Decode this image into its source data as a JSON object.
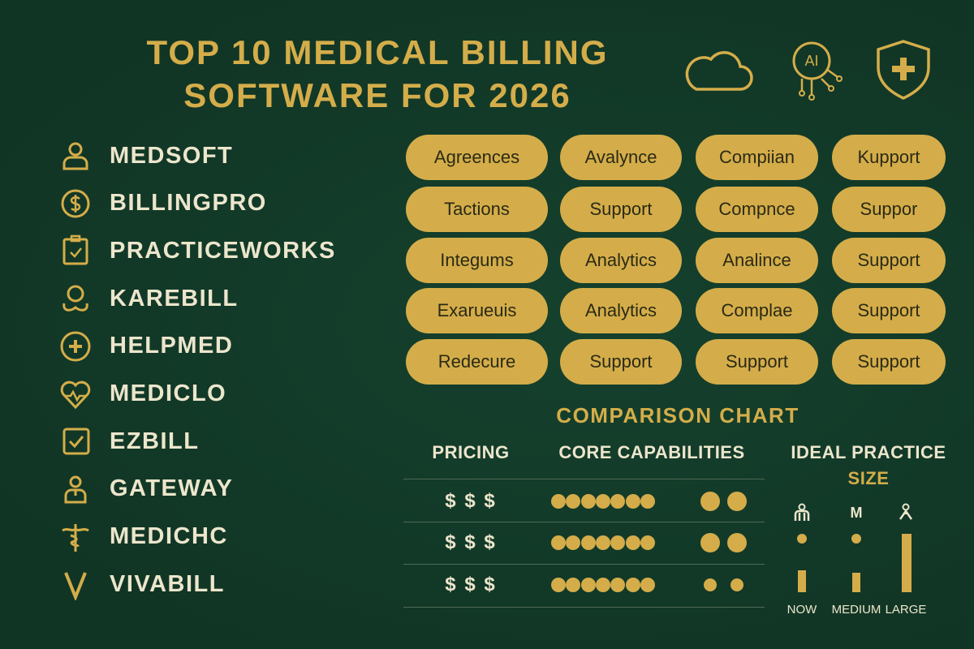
{
  "title": {
    "line1": "TOP 10 MEDICAL BILLING",
    "line2": "SOFTWARE FOR 2026"
  },
  "top_icons": [
    {
      "icon": "cloud-icon"
    },
    {
      "icon": "ai-chip-icon",
      "text": "AI"
    },
    {
      "icon": "shield-plus-icon"
    }
  ],
  "software": [
    {
      "name": "MEDSOFT",
      "icon": "user-icon"
    },
    {
      "name": "BILLINGPRO",
      "icon": "dollar-coin-icon"
    },
    {
      "name": "PRACTICEWORKS",
      "icon": "clipboard-check-icon"
    },
    {
      "name": "KAREBILL",
      "icon": "stethoscope-icon"
    },
    {
      "name": "HELPMED",
      "icon": "plus-circle-icon"
    },
    {
      "name": "MEDICLO",
      "icon": "heart-pulse-icon"
    },
    {
      "name": "EZBILL",
      "icon": "checkbox-icon"
    },
    {
      "name": "GATEWAY",
      "icon": "doctor-icon"
    },
    {
      "name": "MEDICHC",
      "icon": "caduceus-icon"
    },
    {
      "name": "VIVABILL",
      "icon": "v-logo-icon"
    }
  ],
  "features_grid": [
    [
      "Agreences",
      "Avalynce",
      "Compiian",
      "Kupport"
    ],
    [
      "Tactions",
      "Support",
      "Compnce",
      "Suppor"
    ],
    [
      "Integums",
      "Analytics",
      "Analince",
      "Support"
    ],
    [
      "Exarueuis",
      "Analytics",
      "Complae",
      "Support"
    ],
    [
      "Redecure",
      "Support",
      "Support",
      "Support"
    ]
  ],
  "comparison": {
    "title": "COMPARISON CHART",
    "headers": {
      "pricing": "PRICING",
      "capabilities": "CORE CAPABILITIES",
      "ideal_line1": "IDEAL PRACTICE",
      "ideal_line2": "SIZE"
    },
    "rows": [
      {
        "pricing": "$ $ $",
        "small_dots": 7,
        "large_dots": 2
      },
      {
        "pricing": "$ $ $",
        "small_dots": 7,
        "large_dots": 2
      },
      {
        "pricing": "$ $ $",
        "small_dots": 9,
        "large_dots": 0
      }
    ],
    "practice_sizes": [
      {
        "label": "NOW",
        "icon": "person-icon",
        "level": 0.38,
        "dot": true
      },
      {
        "label": "MEDIUM",
        "icon": "m-letter-icon",
        "icon_text": "M",
        "level": 0.34,
        "dot": true
      },
      {
        "label": "LARGE",
        "icon": "person-small-icon",
        "level": 1.0,
        "dot": false
      }
    ]
  },
  "colors": {
    "background": "#123a28",
    "gold": "#d4ad4a",
    "cream": "#ece6cc",
    "pill_text": "#2b2a14"
  }
}
